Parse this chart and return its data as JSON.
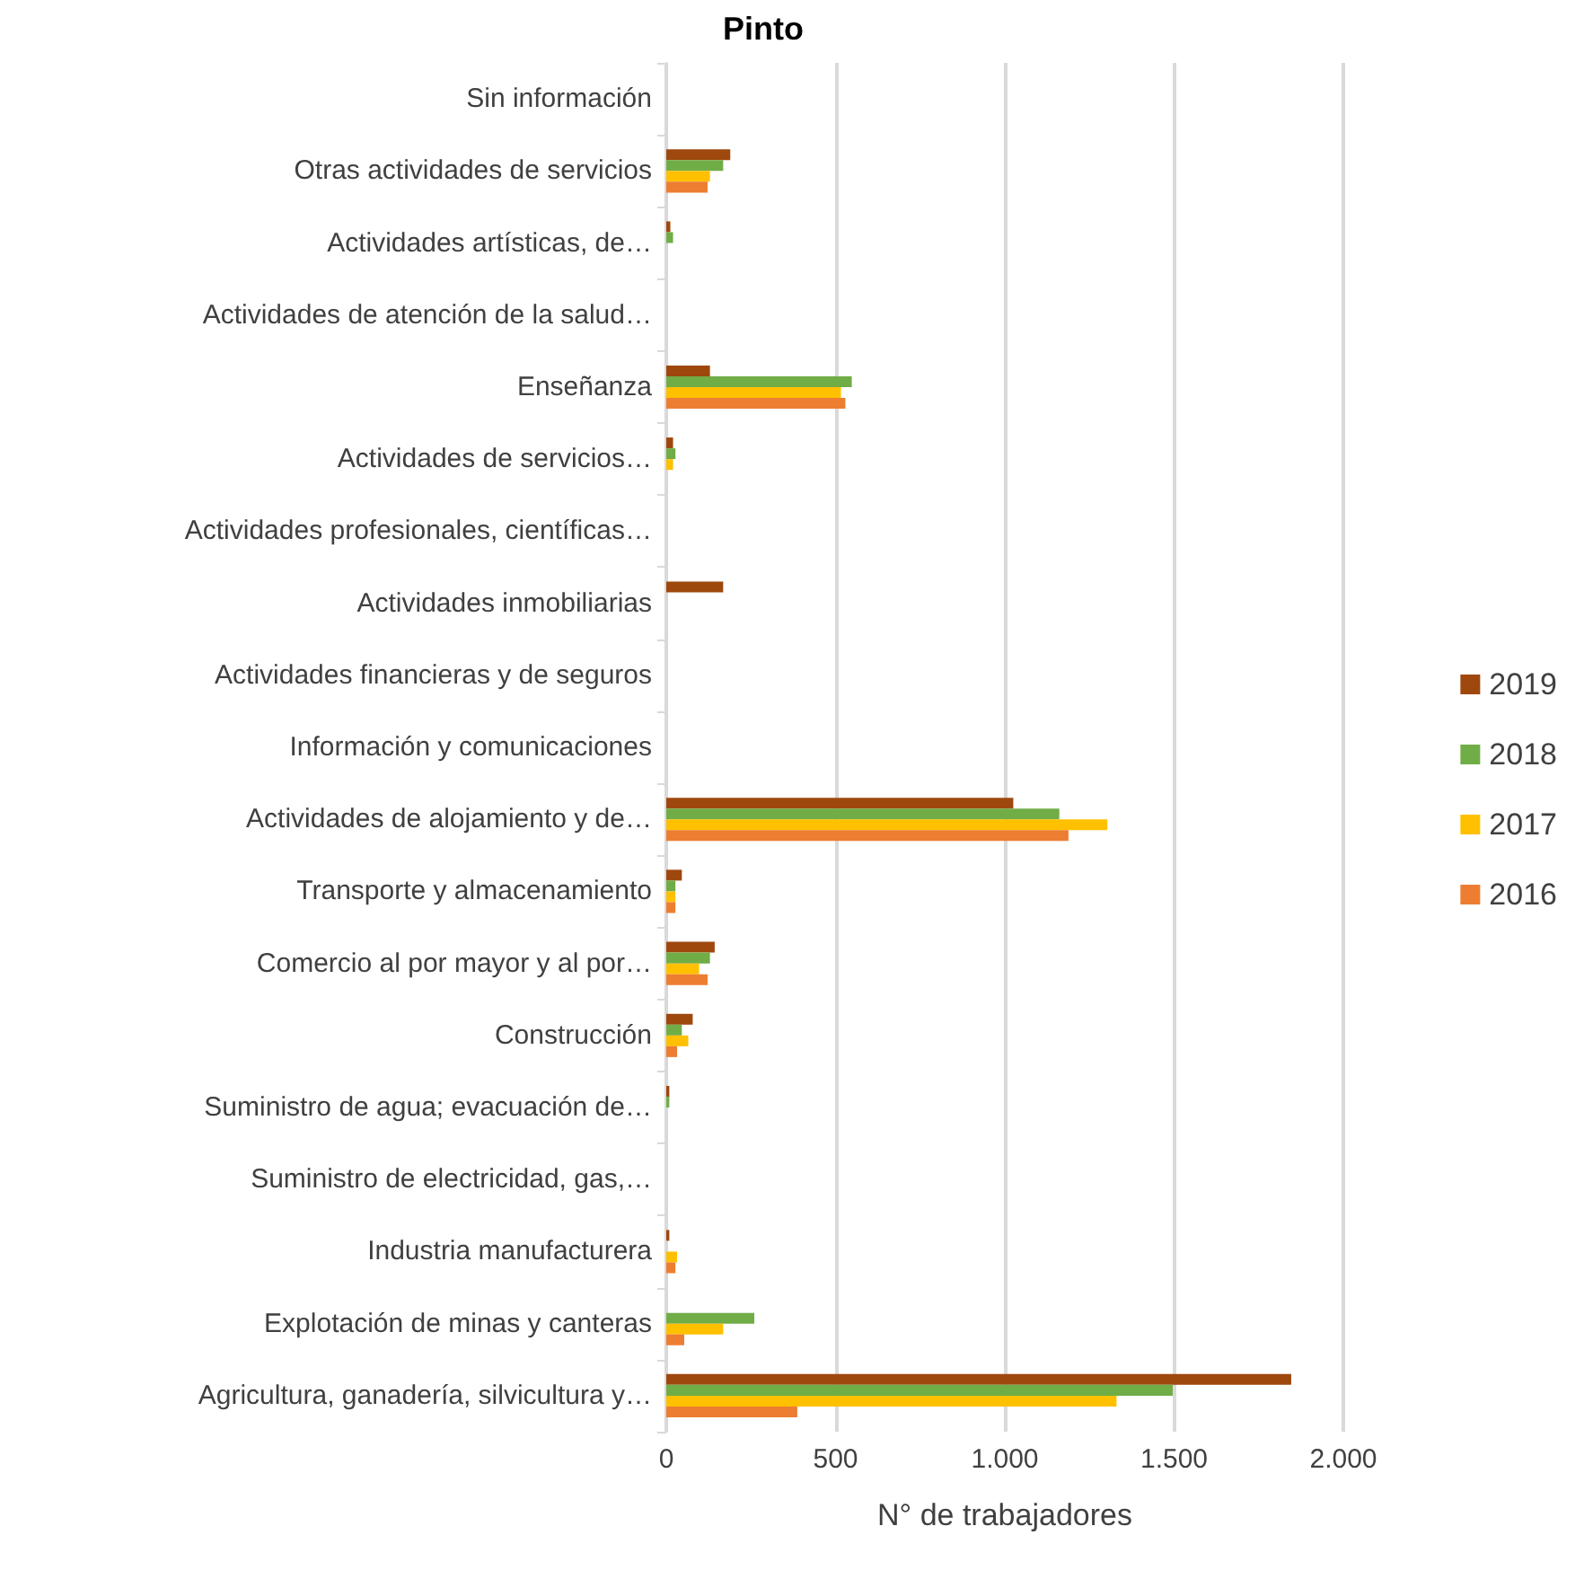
{
  "chart_data": {
    "type": "bar",
    "orientation": "horizontal",
    "title": "Pinto",
    "xlabel": "N° de trabajadores",
    "categories": [
      "Sin información",
      "Otras actividades de servicios",
      "Actividades artísticas, de…",
      "Actividades de atención de la salud…",
      "Enseñanza",
      "Actividades de servicios…",
      "Actividades profesionales, científicas…",
      "Actividades inmobiliarias",
      "Actividades financieras y de seguros",
      "Información y comunicaciones",
      "Actividades de alojamiento y de…",
      "Transporte y almacenamiento",
      "Comercio al por mayor y al por…",
      "Construcción",
      "Suministro de agua; evacuación de…",
      "Suministro de electricidad, gas,…",
      "Industria manufacturera",
      "Explotación de minas y canteras",
      "Agricultura, ganadería, silvicultura y…"
    ],
    "series": [
      {
        "name": "2019",
        "color": "#9e480e",
        "values": [
          0,
          189,
          12,
          0,
          129,
          20,
          0,
          168,
          0,
          0,
          1025,
          46,
          143,
          78,
          9,
          0,
          9,
          0,
          1846
        ]
      },
      {
        "name": "2018",
        "color": "#70ad47",
        "values": [
          0,
          168,
          20,
          0,
          548,
          27,
          0,
          0,
          0,
          0,
          1161,
          27,
          129,
          46,
          9,
          0,
          0,
          260,
          1496
        ]
      },
      {
        "name": "2017",
        "color": "#ffc000",
        "values": [
          0,
          129,
          0,
          0,
          516,
          20,
          0,
          0,
          0,
          0,
          1303,
          27,
          97,
          65,
          0,
          0,
          32,
          168,
          1330
        ]
      },
      {
        "name": "2016",
        "color": "#ed7d31",
        "values": [
          0,
          122,
          0,
          0,
          529,
          0,
          0,
          0,
          0,
          0,
          1188,
          27,
          122,
          32,
          0,
          0,
          27,
          53,
          387
        ]
      }
    ],
    "xlim": [
      0,
      2000
    ],
    "xticks": [
      0,
      500,
      {
        "value": 1000,
        "label": "1.000"
      },
      {
        "value": 1500,
        "label": "1.500"
      },
      {
        "value": 2000,
        "label": "2.000"
      }
    ],
    "grid": "x",
    "legend": "right"
  }
}
